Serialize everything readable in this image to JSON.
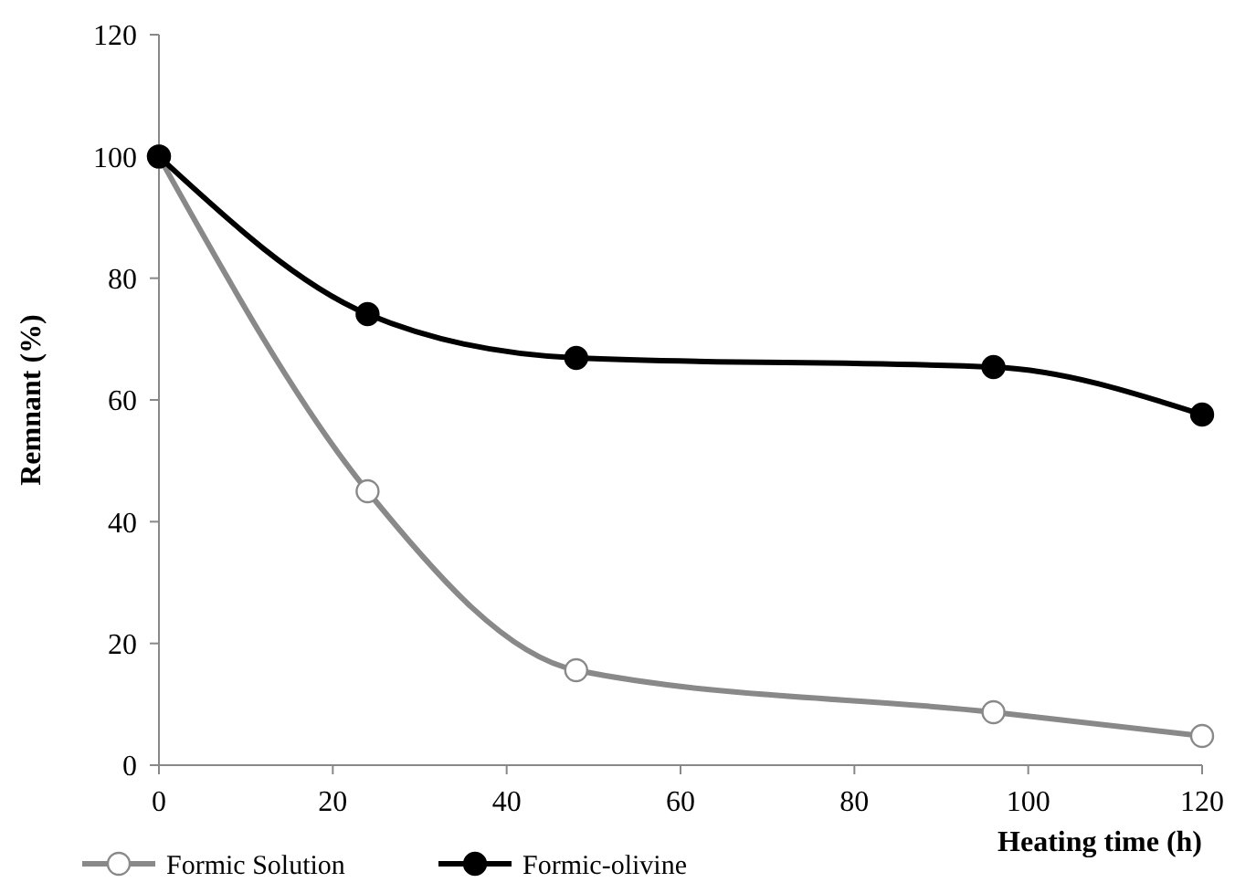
{
  "chart_data": {
    "type": "line",
    "xlabel": "Heating time (h)",
    "ylabel": "Remnant (%)",
    "x": [
      0,
      24,
      48,
      96,
      120
    ],
    "series": [
      {
        "name": "Formic Solution",
        "color": "#898989",
        "values": [
          100,
          45,
          15.6,
          8.7,
          4.8
        ]
      },
      {
        "name": "Formic-olivine",
        "color": "#000000",
        "values": [
          100,
          74.1,
          66.9,
          65.4,
          57.6
        ]
      }
    ],
    "xlim": [
      0,
      120
    ],
    "xticks": [
      0,
      20,
      40,
      60,
      80,
      100,
      120
    ],
    "ylim": [
      0,
      120
    ],
    "yticks": [
      0,
      20,
      40,
      60,
      80,
      100,
      120
    ],
    "grid": false,
    "legend": "bottom left",
    "marker": "circle",
    "line_style": "solid"
  }
}
